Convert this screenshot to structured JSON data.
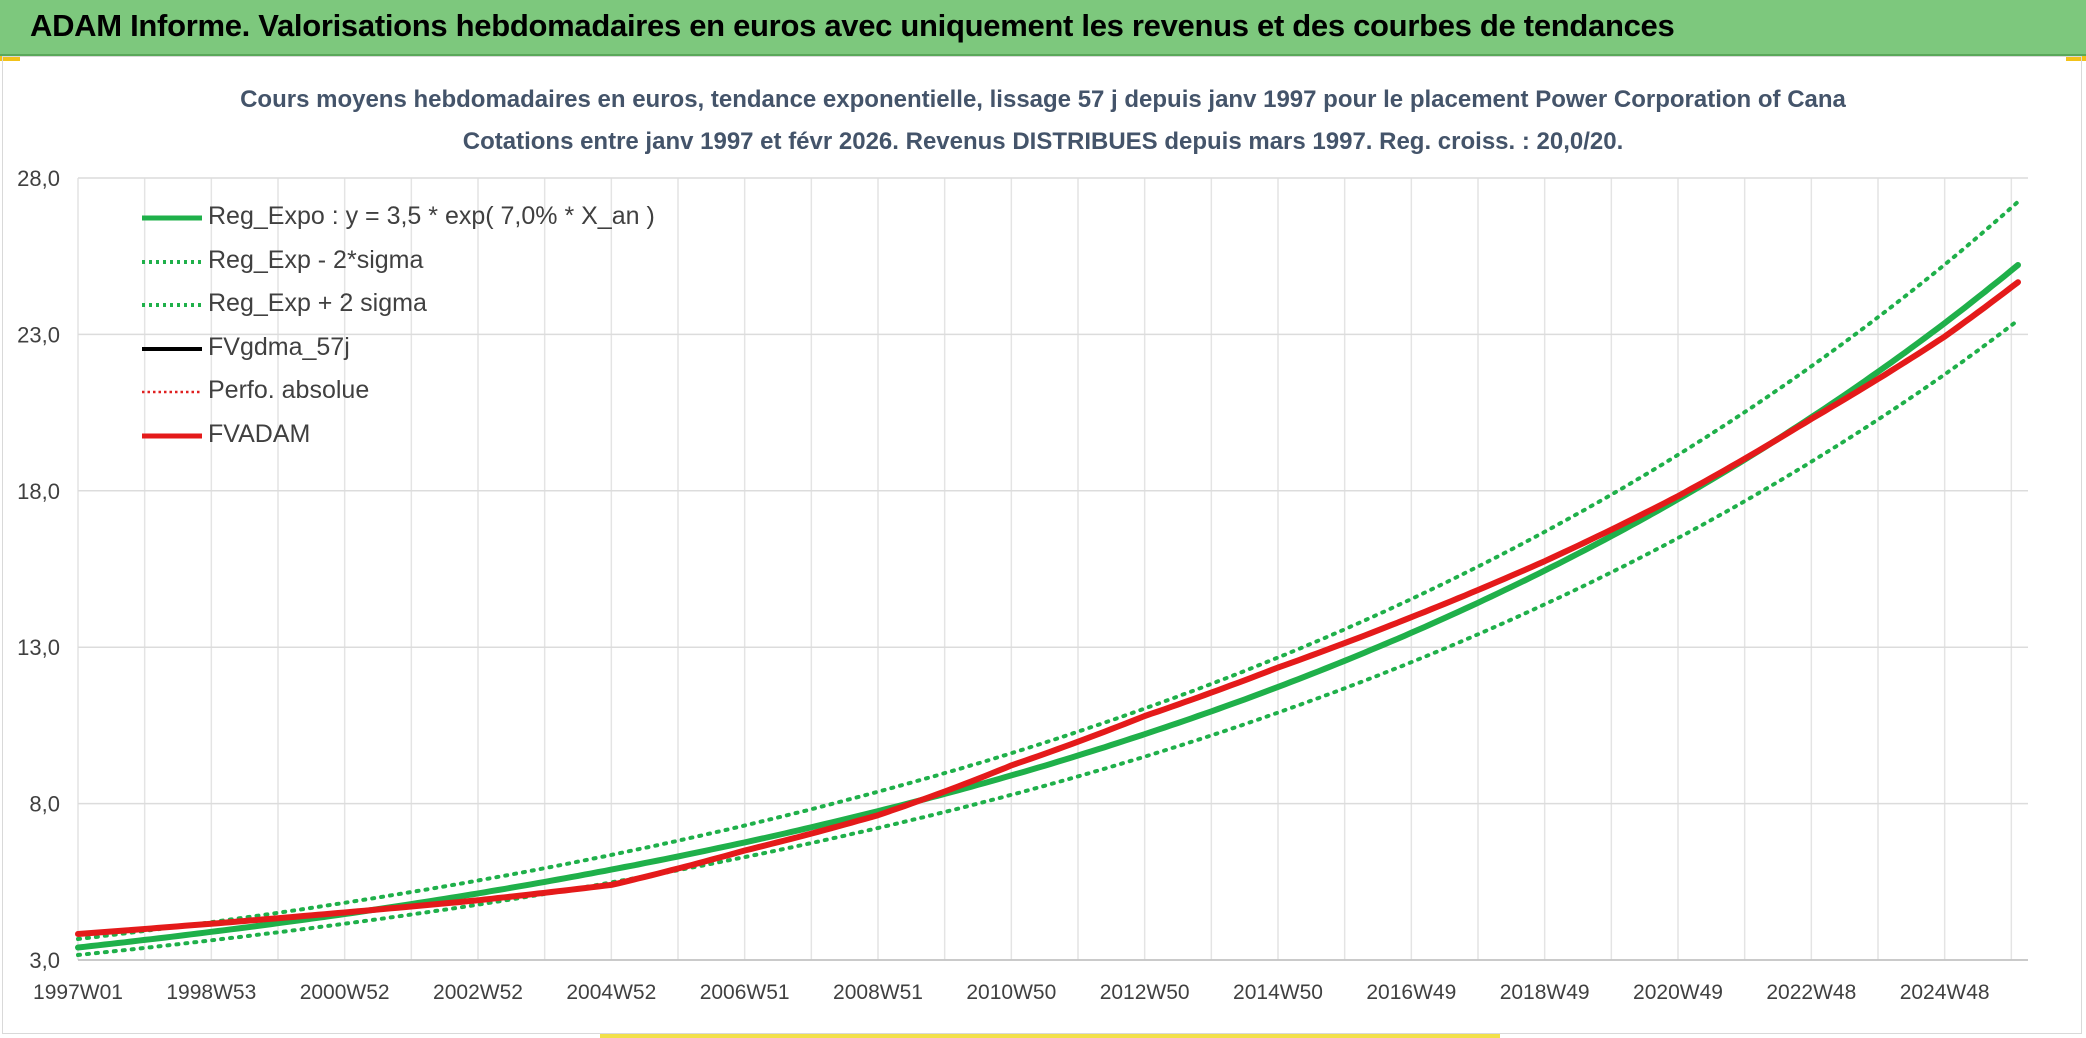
{
  "banner": {
    "title": "ADAM Informe. Valorisations hebdomadaires en euros avec uniquement les revenus et des courbes de tendances",
    "color": "#7dc87d"
  },
  "chart_data": {
    "type": "line",
    "title": [
      "Cours moyens hebdomadaires en euros, tendance exponentielle, lissage 57 j depuis janv 1997 pour le placement Power Corporation of Cana",
      "Cotations entre janv 1997 et févr 2026. Revenus DISTRIBUES depuis mars 1997. Reg. croiss. : 20,0/20."
    ],
    "xlabel": "",
    "ylabel": "",
    "x_range": [
      1997.0,
      2026.25
    ],
    "ylim": [
      3.0,
      28.0
    ],
    "y_ticks": [
      "3,0",
      "8,0",
      "13,0",
      "18,0",
      "23,0",
      "28,0"
    ],
    "x_ticks": [
      {
        "label": "1997W01",
        "x": 1997.0
      },
      {
        "label": "1998W53",
        "x": 1999.0
      },
      {
        "label": "2000W52",
        "x": 2001.0
      },
      {
        "label": "2002W52",
        "x": 2003.0
      },
      {
        "label": "2004W52",
        "x": 2005.0
      },
      {
        "label": "2006W51",
        "x": 2007.0
      },
      {
        "label": "2008W51",
        "x": 2009.0
      },
      {
        "label": "2010W50",
        "x": 2011.0
      },
      {
        "label": "2012W50",
        "x": 2013.0
      },
      {
        "label": "2014W50",
        "x": 2015.0
      },
      {
        "label": "2016W49",
        "x": 2017.0
      },
      {
        "label": "2018W49",
        "x": 2019.0
      },
      {
        "label": "2020W49",
        "x": 2021.0
      },
      {
        "label": "2022W48",
        "x": 2023.0
      },
      {
        "label": "2024W48",
        "x": 2025.0
      }
    ],
    "grid": true,
    "legend_position": "top-left",
    "series": [
      {
        "name": "Reg_Expo : y = 3,5 * exp( 7,0% *  X_an )",
        "color": "#1fb04a",
        "style": "solid-thick",
        "x": [
          1997.0,
          1999.0,
          2001.0,
          2003.0,
          2005.0,
          2007.0,
          2009.0,
          2011.0,
          2013.0,
          2015.0,
          2017.0,
          2019.0,
          2021.0,
          2023.0,
          2025.0,
          2026.1
        ],
        "y": [
          3.4,
          3.9,
          4.47,
          5.13,
          5.89,
          6.76,
          7.76,
          8.9,
          10.22,
          11.73,
          13.46,
          15.45,
          17.73,
          20.35,
          23.36,
          25.22
        ]
      },
      {
        "name": "Reg_Exp - 2*sigma",
        "color": "#1fb04a",
        "style": "dotted",
        "x": [
          1997.0,
          1999.0,
          2001.0,
          2003.0,
          2005.0,
          2007.0,
          2009.0,
          2011.0,
          2013.0,
          2015.0,
          2017.0,
          2019.0,
          2021.0,
          2023.0,
          2025.0,
          2026.1
        ],
        "y": [
          3.16,
          3.63,
          4.16,
          4.77,
          5.48,
          6.29,
          7.22,
          8.28,
          9.5,
          10.91,
          12.52,
          14.37,
          16.49,
          18.93,
          21.72,
          23.45
        ]
      },
      {
        "name": "Reg_Exp + 2 sigma",
        "color": "#1fb04a",
        "style": "dotted",
        "x": [
          1997.0,
          1999.0,
          2001.0,
          2003.0,
          2005.0,
          2007.0,
          2009.0,
          2011.0,
          2013.0,
          2015.0,
          2017.0,
          2019.0,
          2021.0,
          2023.0,
          2025.0,
          2026.1
        ],
        "y": [
          3.67,
          4.21,
          4.83,
          5.54,
          6.36,
          7.3,
          8.38,
          9.61,
          11.04,
          12.67,
          14.54,
          16.69,
          19.15,
          21.98,
          25.23,
          27.24
        ]
      },
      {
        "name": "FVgdma_57j",
        "color": "#000000",
        "style": "solid",
        "x": [],
        "y": []
      },
      {
        "name": "Perfo. absolue",
        "color": "#e02020",
        "style": "dotted",
        "x": [],
        "y": []
      },
      {
        "name": "FVADAM",
        "color": "#e41a1a",
        "style": "solid-thick",
        "x": [
          1997.0,
          1999.0,
          2001.0,
          2003.0,
          2005.0,
          2007.0,
          2009.0,
          2011.0,
          2013.0,
          2015.0,
          2017.0,
          2019.0,
          2021.0,
          2023.0,
          2025.0,
          2026.1
        ],
        "y": [
          3.83,
          4.16,
          4.52,
          4.91,
          5.4,
          6.5,
          7.63,
          9.22,
          10.8,
          12.35,
          13.96,
          15.75,
          17.83,
          20.3,
          22.93,
          24.67
        ]
      }
    ]
  }
}
